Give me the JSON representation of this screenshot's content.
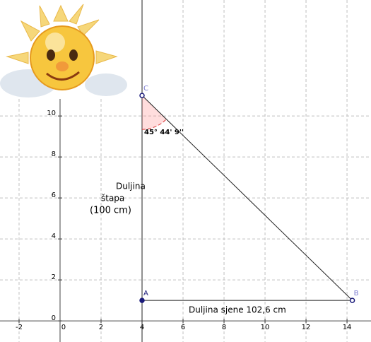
{
  "axes": {
    "xlim": [
      -2.93,
      15.17
    ],
    "ylim": [
      -1.03,
      15.66
    ],
    "xticks": [
      -2,
      0,
      2,
      4,
      6,
      8,
      10,
      12,
      14
    ],
    "yticks": [
      0,
      2,
      4,
      6,
      8,
      10
    ]
  },
  "points": [
    {
      "label": "A",
      "x": 4,
      "y": 1
    },
    {
      "label": "B",
      "x": 14.26,
      "y": 1
    },
    {
      "label": "C",
      "x": 4,
      "y": 11
    }
  ],
  "angle": {
    "label": "45° 44' 9''"
  },
  "labels": {
    "height": [
      "Duljina",
      "štapa",
      "(100 cm)"
    ],
    "shadow": "Duljina sjene 102,6 cm"
  }
}
